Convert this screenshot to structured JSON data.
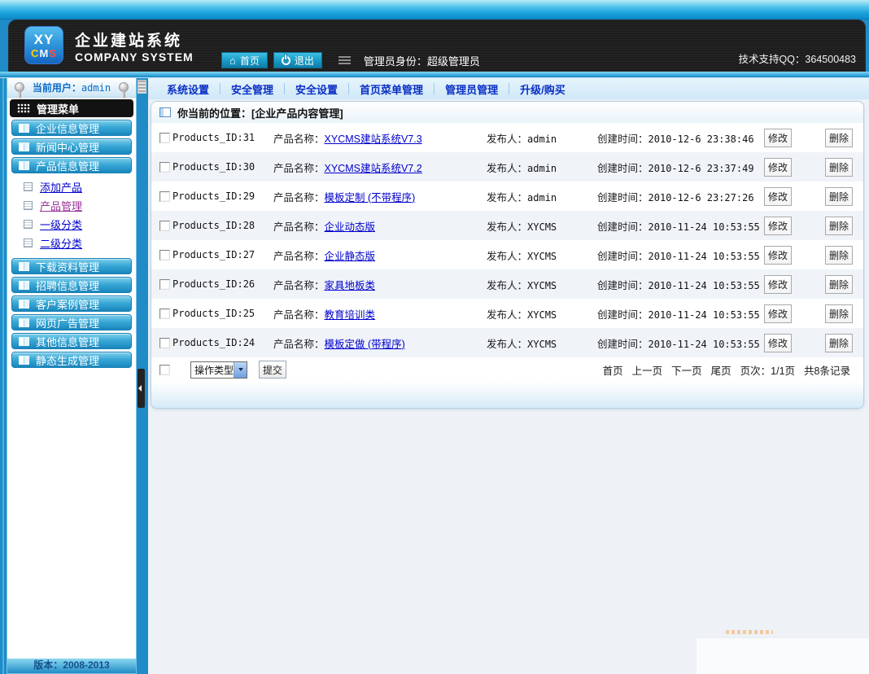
{
  "colors": {
    "accent": "#1e9ad6",
    "link": "#0000cc",
    "visited_link": "#993399",
    "menu_button": "#1886bc"
  },
  "header": {
    "logo_xy": "XY",
    "logo_c": "C",
    "logo_m": "M",
    "logo_s": "S",
    "title": "企业建站系统",
    "subtitle": "COMPANY SYSTEM",
    "nav_home": "首页",
    "nav_logout": "退出",
    "admin_role": "管理员身份：超级管理员",
    "support": "技术支持QQ：364500483"
  },
  "topmenu": {
    "items": [
      "系统设置",
      "安全管理",
      "安全设置",
      "首页菜单管理",
      "管理员管理",
      "升级/购买"
    ]
  },
  "sidebar": {
    "current_user_label": "当前用户：",
    "current_user_value": "admin",
    "menu_title": "管理菜单",
    "groups": [
      {
        "label": "企业信息管理"
      },
      {
        "label": "新闻中心管理"
      },
      {
        "label": "产品信息管理",
        "children": [
          {
            "label": "添加产品"
          },
          {
            "label": "产品管理"
          },
          {
            "label": "一级分类"
          },
          {
            "label": "二级分类"
          }
        ]
      },
      {
        "label": "下载资料管理"
      },
      {
        "label": "招聘信息管理"
      },
      {
        "label": "客户案例管理"
      },
      {
        "label": "网页广告管理"
      },
      {
        "label": "其他信息管理"
      },
      {
        "label": "静态生成管理"
      }
    ],
    "version": "版本：2008-2013"
  },
  "content": {
    "breadcrumb": "你当前的位置：[企业产品内容管理]",
    "labels": {
      "name": "产品名称：",
      "publisher": "发布人：",
      "time": "创建时间：",
      "edit": "修改",
      "delete": "删除"
    },
    "rows": [
      {
        "id": "Products_ID:31",
        "name": "XYCMS建站系统V7.3",
        "publisher": "admin",
        "time": "2010-12-6 23:38:46"
      },
      {
        "id": "Products_ID:30",
        "name": "XYCMS建站系统V7.2",
        "publisher": "admin",
        "time": "2010-12-6 23:37:49"
      },
      {
        "id": "Products_ID:29",
        "name": "模板定制 (不带程序)",
        "publisher": "admin",
        "time": "2010-12-6 23:27:26"
      },
      {
        "id": "Products_ID:28",
        "name": "企业动态版",
        "publisher": "XYCMS",
        "time": "2010-11-24 10:53:55"
      },
      {
        "id": "Products_ID:27",
        "name": "企业静态版",
        "publisher": "XYCMS",
        "time": "2010-11-24 10:53:55"
      },
      {
        "id": "Products_ID:26",
        "name": "家具地板类",
        "publisher": "XYCMS",
        "time": "2010-11-24 10:53:55"
      },
      {
        "id": "Products_ID:25",
        "name": "教育培训类",
        "publisher": "XYCMS",
        "time": "2010-11-24 10:53:55"
      },
      {
        "id": "Products_ID:24",
        "name": "模板定做 (带程序)",
        "publisher": "XYCMS",
        "time": "2010-11-24 10:53:55"
      }
    ],
    "action": {
      "select_value": "操作类型",
      "submit": "提交"
    },
    "pagination": {
      "first": "首页",
      "prev": "上一页",
      "next": "下一页",
      "last": "尾页",
      "page_info": "页次：1/1页",
      "total": "共8条记录"
    }
  }
}
